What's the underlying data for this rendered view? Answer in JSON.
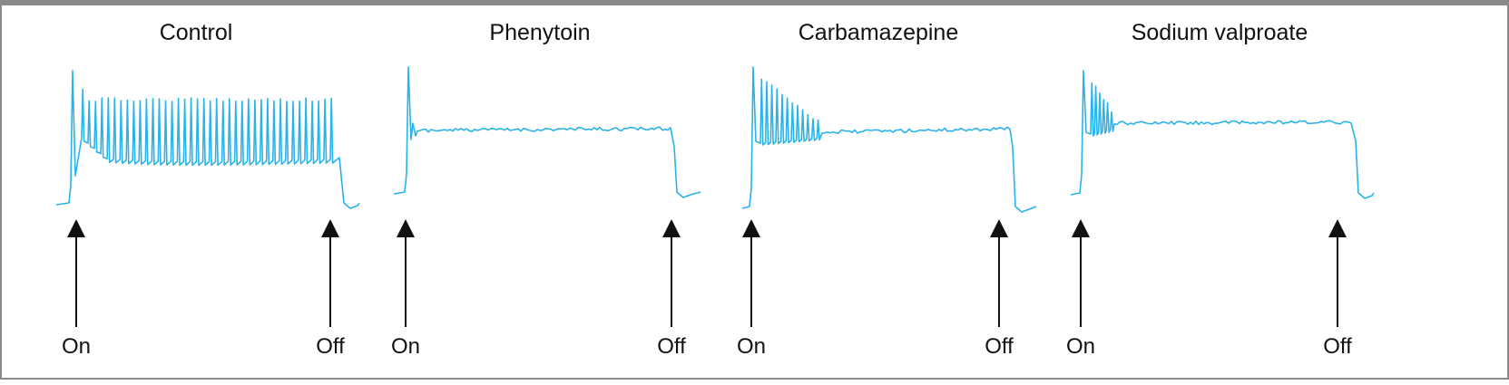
{
  "figure": {
    "colors": {
      "trace": "#29b3ea",
      "arrow": "#111111",
      "border": "#8a8a8a"
    },
    "panels": [
      {
        "id": "control",
        "title": "Control",
        "on_label": "On",
        "off_label": "Off",
        "trace": {
          "pattern": "sustained-firing",
          "spikes": 40
        }
      },
      {
        "id": "phenytoin",
        "title": "Phenytoin",
        "on_label": "On",
        "off_label": "Off",
        "trace": {
          "pattern": "single-spike",
          "spikes": 1
        }
      },
      {
        "id": "carbamazepine",
        "title": "Carbamazepine",
        "on_label": "On",
        "off_label": "Off",
        "trace": {
          "pattern": "brief-burst",
          "spikes": 12
        }
      },
      {
        "id": "sodium-valproate",
        "title": "Sodium valproate",
        "on_label": "On",
        "off_label": "Off",
        "trace": {
          "pattern": "brief-burst",
          "spikes": 6
        }
      }
    ]
  }
}
